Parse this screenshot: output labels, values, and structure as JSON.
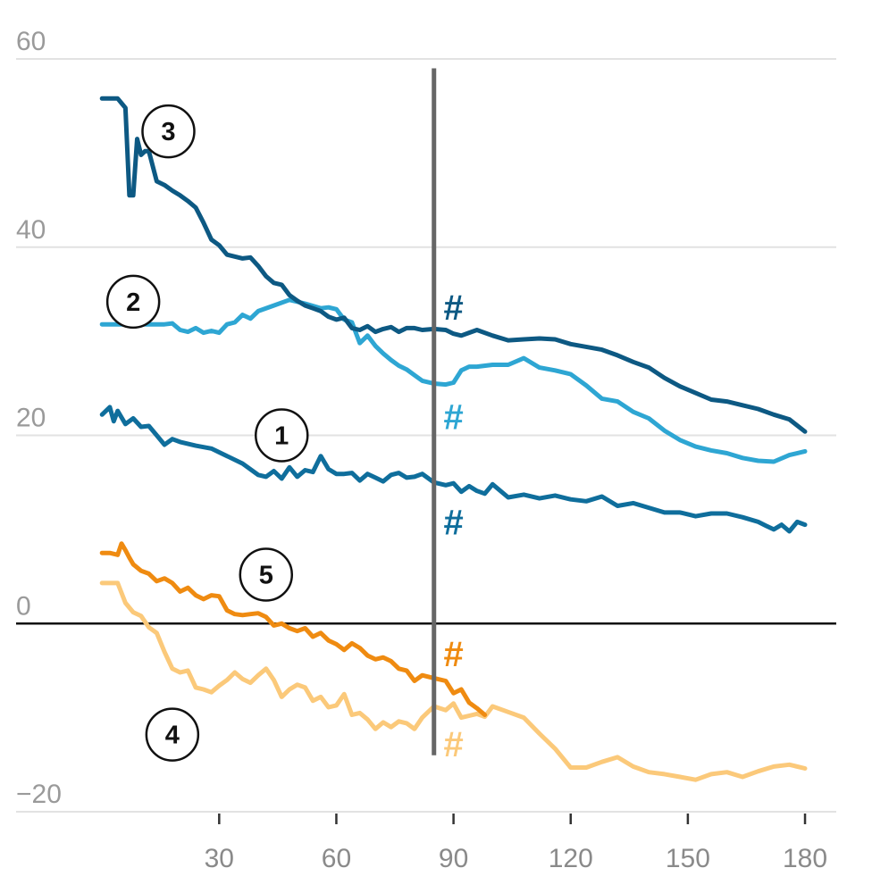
{
  "chart_data": {
    "type": "line",
    "title": "",
    "xlabel": "",
    "ylabel": "",
    "xlim": [
      -22,
      188
    ],
    "ylim": [
      -20,
      60
    ],
    "x_ticks": [
      30,
      60,
      90,
      120,
      150,
      180
    ],
    "y_ticks": [
      -20,
      0,
      20,
      40,
      60
    ],
    "y_tick_labels": [
      "−20",
      "0",
      "20",
      "40",
      "60"
    ],
    "zero_line": true,
    "grid": "horizontal",
    "reference_line": {
      "x": 85,
      "y_from": -14,
      "y_to": 59,
      "color": "#666666"
    },
    "series": [
      {
        "name": "1",
        "color": "#0f6e9c",
        "x": [
          0,
          2,
          3,
          4,
          6,
          8,
          10,
          12,
          14,
          16,
          18,
          20,
          24,
          28,
          32,
          36,
          40,
          42,
          44,
          46,
          48,
          50,
          52,
          54,
          56,
          58,
          60,
          62,
          64,
          66,
          68,
          70,
          72,
          74,
          76,
          78,
          80,
          82,
          85,
          88,
          90,
          92,
          94,
          96,
          98,
          100,
          104,
          108,
          112,
          116,
          120,
          124,
          128,
          132,
          136,
          140,
          144,
          148,
          152,
          156,
          160,
          164,
          168,
          170,
          172,
          174,
          176,
          178,
          180
        ],
        "y": [
          22.2,
          23.0,
          21.5,
          22.6,
          21.2,
          21.8,
          20.9,
          21.0,
          20.0,
          19.0,
          19.6,
          19.3,
          18.9,
          18.6,
          17.8,
          17.0,
          15.8,
          15.6,
          16.2,
          15.4,
          16.6,
          15.6,
          16.3,
          16.1,
          17.8,
          16.4,
          15.9,
          15.9,
          16.0,
          15.2,
          15.9,
          15.5,
          15.1,
          15.8,
          16.0,
          15.5,
          15.6,
          15.9,
          15.0,
          14.7,
          14.9,
          14.0,
          14.6,
          14.1,
          13.8,
          14.8,
          13.4,
          13.7,
          13.3,
          13.6,
          13.2,
          13.0,
          13.5,
          12.5,
          12.8,
          12.3,
          11.8,
          11.8,
          11.4,
          11.7,
          11.7,
          11.3,
          10.8,
          10.4,
          10.0,
          10.5,
          9.8,
          10.8,
          10.5
        ]
      },
      {
        "name": "2",
        "color": "#2ea6d3",
        "x": [
          0,
          4,
          8,
          12,
          16,
          18,
          20,
          22,
          24,
          26,
          28,
          30,
          32,
          34,
          36,
          38,
          40,
          44,
          48,
          52,
          56,
          58,
          60,
          62,
          64,
          66,
          68,
          70,
          72,
          74,
          76,
          78,
          80,
          82,
          85,
          88,
          90,
          92,
          94,
          96,
          100,
          104,
          108,
          112,
          116,
          120,
          124,
          128,
          132,
          136,
          140,
          144,
          148,
          152,
          156,
          160,
          164,
          168,
          172,
          176,
          180
        ],
        "y": [
          31.8,
          31.8,
          31.8,
          31.8,
          31.8,
          31.9,
          31.2,
          31.0,
          31.4,
          30.9,
          31.1,
          30.9,
          31.8,
          32.0,
          32.8,
          32.4,
          33.2,
          33.8,
          34.4,
          34.0,
          33.5,
          33.6,
          33.4,
          32.3,
          32.0,
          29.8,
          30.6,
          29.5,
          28.7,
          28.0,
          27.4,
          27.0,
          26.4,
          25.8,
          25.5,
          25.4,
          25.6,
          26.9,
          27.3,
          27.3,
          27.5,
          27.5,
          28.2,
          27.2,
          26.9,
          26.5,
          25.3,
          23.9,
          23.6,
          22.5,
          21.8,
          20.5,
          19.5,
          18.8,
          18.4,
          18.1,
          17.6,
          17.3,
          17.2,
          17.9,
          18.3
        ]
      },
      {
        "name": "3",
        "color": "#0d5983",
        "x": [
          0,
          2,
          3,
          4,
          5,
          6,
          7,
          8,
          9,
          10,
          11,
          12,
          14,
          16,
          18,
          20,
          22,
          24,
          26,
          28,
          30,
          32,
          34,
          36,
          38,
          40,
          42,
          44,
          46,
          48,
          50,
          52,
          54,
          56,
          58,
          60,
          62,
          64,
          66,
          68,
          70,
          72,
          74,
          76,
          78,
          80,
          82,
          85,
          88,
          90,
          92,
          94,
          96,
          100,
          104,
          108,
          112,
          116,
          120,
          124,
          128,
          132,
          136,
          140,
          144,
          148,
          152,
          156,
          160,
          164,
          168,
          172,
          176,
          180
        ],
        "y": [
          55.8,
          55.8,
          55.8,
          55.8,
          55.3,
          54.8,
          45.5,
          45.5,
          51.5,
          49.8,
          50.2,
          50.2,
          47.0,
          46.6,
          46.0,
          45.5,
          44.9,
          44.2,
          42.6,
          40.8,
          40.2,
          39.2,
          39.0,
          38.8,
          38.9,
          38.0,
          36.9,
          36.2,
          36.0,
          34.9,
          34.3,
          33.8,
          33.5,
          33.2,
          32.6,
          32.3,
          32.5,
          31.4,
          31.2,
          31.6,
          31.0,
          31.3,
          31.5,
          31.0,
          31.4,
          31.4,
          31.2,
          31.3,
          31.2,
          30.8,
          30.6,
          30.9,
          31.2,
          30.6,
          30.1,
          30.2,
          30.3,
          30.2,
          29.7,
          29.4,
          29.1,
          28.5,
          27.8,
          27.2,
          26.1,
          25.2,
          24.5,
          23.8,
          23.6,
          23.2,
          22.8,
          22.2,
          21.7,
          20.4
        ]
      },
      {
        "name": "4",
        "color": "#fbc97a",
        "x": [
          0,
          2,
          4,
          6,
          8,
          10,
          12,
          14,
          16,
          18,
          20,
          22,
          24,
          26,
          28,
          30,
          32,
          34,
          36,
          38,
          40,
          42,
          44,
          46,
          48,
          50,
          52,
          54,
          56,
          58,
          60,
          62,
          64,
          66,
          68,
          70,
          72,
          74,
          76,
          78,
          80,
          82,
          85,
          88,
          90,
          92,
          94,
          96,
          98,
          100,
          104,
          108,
          112,
          116,
          120,
          124,
          128,
          132,
          136,
          140,
          144,
          148,
          152,
          156,
          160,
          164,
          168,
          172,
          176,
          180
        ],
        "y": [
          4.3,
          4.3,
          4.3,
          2.2,
          1.2,
          0.8,
          -0.4,
          -1.0,
          -3.0,
          -4.8,
          -5.2,
          -5.0,
          -6.8,
          -7.0,
          -7.3,
          -6.6,
          -6.0,
          -5.2,
          -5.9,
          -6.3,
          -5.5,
          -4.8,
          -6.0,
          -7.8,
          -7.0,
          -6.5,
          -6.8,
          -8.2,
          -7.8,
          -8.9,
          -8.7,
          -7.5,
          -9.7,
          -9.5,
          -10.2,
          -11.2,
          -10.5,
          -11.0,
          -10.4,
          -10.6,
          -11.2,
          -10.0,
          -8.8,
          -9.2,
          -8.5,
          -10.0,
          -9.8,
          -9.6,
          -9.9,
          -8.8,
          -9.4,
          -10.0,
          -11.7,
          -13.3,
          -15.3,
          -15.3,
          -14.7,
          -14.2,
          -15.2,
          -15.8,
          -16.0,
          -16.3,
          -16.6,
          -16.0,
          -15.8,
          -16.3,
          -15.7,
          -15.2,
          -15.0,
          -15.4
        ]
      },
      {
        "name": "5",
        "color": "#ef8b11",
        "x": [
          0,
          2,
          4,
          5,
          6,
          7,
          8,
          10,
          12,
          14,
          16,
          18,
          20,
          22,
          24,
          26,
          28,
          30,
          32,
          34,
          36,
          38,
          40,
          42,
          44,
          46,
          48,
          50,
          52,
          54,
          56,
          58,
          60,
          62,
          64,
          66,
          68,
          70,
          72,
          74,
          76,
          78,
          80,
          82,
          85,
          88,
          90,
          92,
          94,
          96,
          98
        ],
        "y": [
          7.5,
          7.5,
          7.3,
          8.5,
          7.8,
          7.0,
          6.3,
          5.6,
          5.3,
          4.5,
          4.8,
          4.3,
          3.4,
          3.8,
          3.0,
          2.6,
          3.0,
          2.9,
          1.4,
          1.0,
          0.9,
          1.0,
          1.1,
          0.7,
          -0.2,
          0.0,
          -0.5,
          -0.8,
          -0.5,
          -1.4,
          -1.0,
          -1.8,
          -2.2,
          -2.8,
          -2.1,
          -2.6,
          -3.4,
          -3.8,
          -3.6,
          -4.0,
          -4.8,
          -5.0,
          -6.1,
          -5.5,
          -5.8,
          -6.1,
          -7.4,
          -7.0,
          -8.4,
          -9.0,
          -9.7
        ]
      }
    ],
    "annotations": [
      {
        "text": "1",
        "type": "circle",
        "x": 46,
        "y": 20.0,
        "series": "1"
      },
      {
        "text": "2",
        "type": "circle",
        "x": 8,
        "y": 34.2,
        "series": "2"
      },
      {
        "text": "3",
        "type": "circle",
        "x": 17,
        "y": 52.3,
        "series": "3"
      },
      {
        "text": "4",
        "type": "circle",
        "x": 18,
        "y": -11.8,
        "series": "4"
      },
      {
        "text": "5",
        "type": "circle",
        "x": 42,
        "y": 5.2,
        "series": "5"
      },
      {
        "text": "#",
        "type": "label",
        "x": 90,
        "y": 33.6,
        "series": "3"
      },
      {
        "text": "#",
        "type": "label",
        "x": 90,
        "y": 22.0,
        "series": "2"
      },
      {
        "text": "#",
        "type": "label",
        "x": 90,
        "y": 10.8,
        "series": "1"
      },
      {
        "text": "#",
        "type": "label",
        "x": 90,
        "y": -3.2,
        "series": "5"
      },
      {
        "text": "#",
        "type": "label",
        "x": 90,
        "y": -12.8,
        "series": "4"
      }
    ]
  }
}
